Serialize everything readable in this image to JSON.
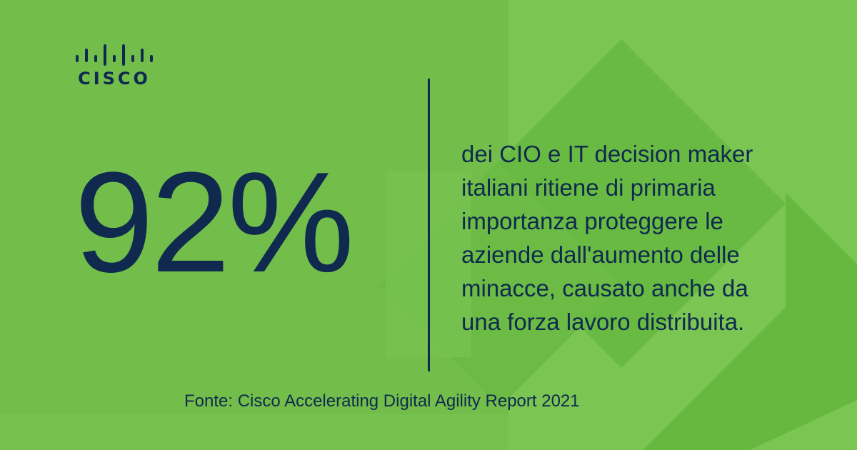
{
  "brand": {
    "logo_text": "CISCO",
    "colors": {
      "background": "#74bf4b",
      "text": "#0f2a4e",
      "shape_light": "#7dc556",
      "shape_dark": "#63b53d"
    }
  },
  "stat": {
    "value": "92%"
  },
  "description": {
    "lines": [
      "dei CIO e IT decision maker",
      "italiani ritiene di primaria",
      "importanza proteggere le",
      "aziende dall'aumento delle",
      "minacce, causato anche da",
      "una forza lavoro distribuita."
    ]
  },
  "source": "Fonte: Cisco Accelerating Digital Agility Report 2021"
}
